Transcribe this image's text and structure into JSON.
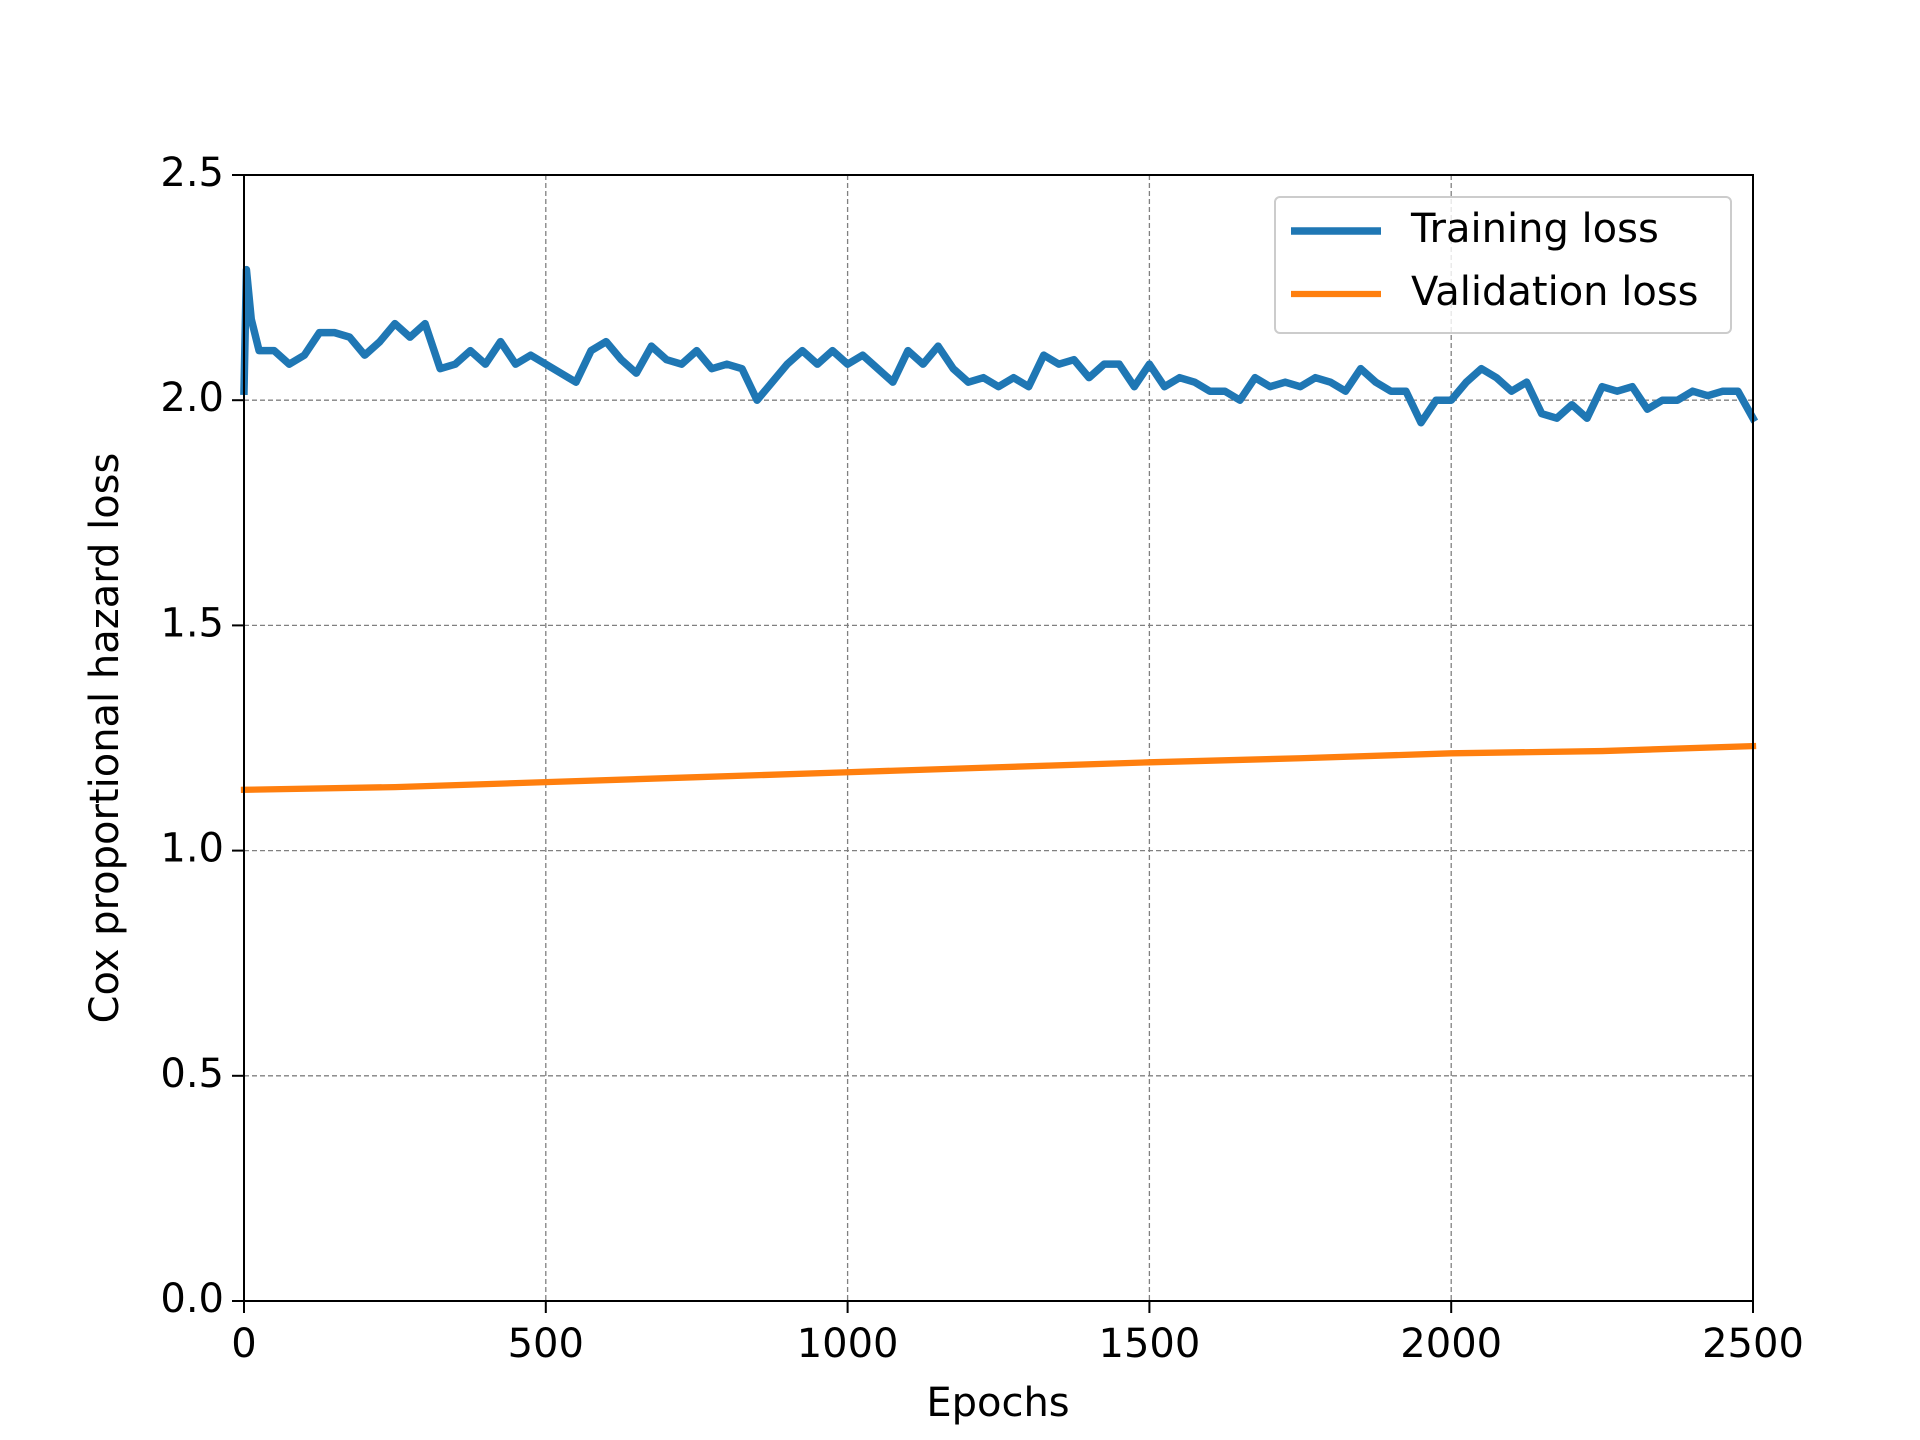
{
  "chart_data": {
    "type": "line",
    "xlabel": "Epochs",
    "ylabel": "Cox proportional hazard loss",
    "xlim": [
      0,
      2500
    ],
    "ylim": [
      0,
      2.5
    ],
    "xticks": [
      0,
      500,
      1000,
      1500,
      2000,
      2500
    ],
    "yticks": [
      {
        "value": 0,
        "label": "0.0"
      },
      0.5,
      {
        "value": 1,
        "label": "1.0"
      },
      1.5,
      {
        "value": 2,
        "label": "2.0"
      },
      2.5
    ],
    "grid": true,
    "legend": "upper right",
    "series": [
      {
        "name": "Training loss",
        "color": "#1f77b4",
        "x": [
          0,
          4,
          12,
          25,
          50,
          75,
          100,
          125,
          150,
          175,
          200,
          225,
          250,
          275,
          300,
          325,
          350,
          375,
          400,
          425,
          450,
          475,
          500,
          525,
          550,
          575,
          600,
          625,
          650,
          675,
          700,
          725,
          750,
          775,
          800,
          825,
          850,
          875,
          900,
          925,
          950,
          975,
          1000,
          1025,
          1050,
          1075,
          1100,
          1125,
          1150,
          1175,
          1200,
          1225,
          1250,
          1275,
          1300,
          1325,
          1350,
          1375,
          1400,
          1425,
          1450,
          1475,
          1500,
          1525,
          1550,
          1575,
          1600,
          1625,
          1650,
          1675,
          1700,
          1725,
          1750,
          1775,
          1800,
          1825,
          1850,
          1875,
          1900,
          1925,
          1950,
          1975,
          2000,
          2025,
          2050,
          2075,
          2100,
          2125,
          2150,
          2175,
          2200,
          2225,
          2250,
          2275,
          2300,
          2325,
          2350,
          2375,
          2400,
          2425,
          2450,
          2475,
          2500
        ],
        "values": [
          2.02,
          2.29,
          2.18,
          2.11,
          2.11,
          2.08,
          2.1,
          2.15,
          2.15,
          2.14,
          2.1,
          2.13,
          2.17,
          2.14,
          2.17,
          2.07,
          2.08,
          2.11,
          2.08,
          2.13,
          2.08,
          2.1,
          2.08,
          2.06,
          2.04,
          2.11,
          2.13,
          2.09,
          2.06,
          2.12,
          2.09,
          2.08,
          2.11,
          2.07,
          2.08,
          2.07,
          2.0,
          2.04,
          2.08,
          2.11,
          2.08,
          2.11,
          2.08,
          2.1,
          2.07,
          2.04,
          2.11,
          2.08,
          2.12,
          2.07,
          2.04,
          2.05,
          2.03,
          2.05,
          2.03,
          2.1,
          2.08,
          2.09,
          2.05,
          2.08,
          2.08,
          2.03,
          2.08,
          2.03,
          2.05,
          2.04,
          2.02,
          2.02,
          2.0,
          2.05,
          2.03,
          2.04,
          2.03,
          2.05,
          2.04,
          2.02,
          2.07,
          2.04,
          2.02,
          2.02,
          1.95,
          2.0,
          2.0,
          2.04,
          2.07,
          2.05,
          2.02,
          2.04,
          1.97,
          1.96,
          1.99,
          1.96,
          2.03,
          2.02,
          2.03,
          1.98,
          2.0,
          2.0,
          2.02,
          2.01,
          2.02,
          2.02,
          1.96
        ]
      },
      {
        "name": "Validation loss",
        "color": "#ff7f0e",
        "x": [
          0,
          250,
          500,
          750,
          1000,
          1250,
          1500,
          1750,
          2000,
          2250,
          2500
        ],
        "values": [
          1.135,
          1.141,
          1.152,
          1.163,
          1.174,
          1.185,
          1.196,
          1.205,
          1.216,
          1.221,
          1.232
        ]
      }
    ]
  }
}
